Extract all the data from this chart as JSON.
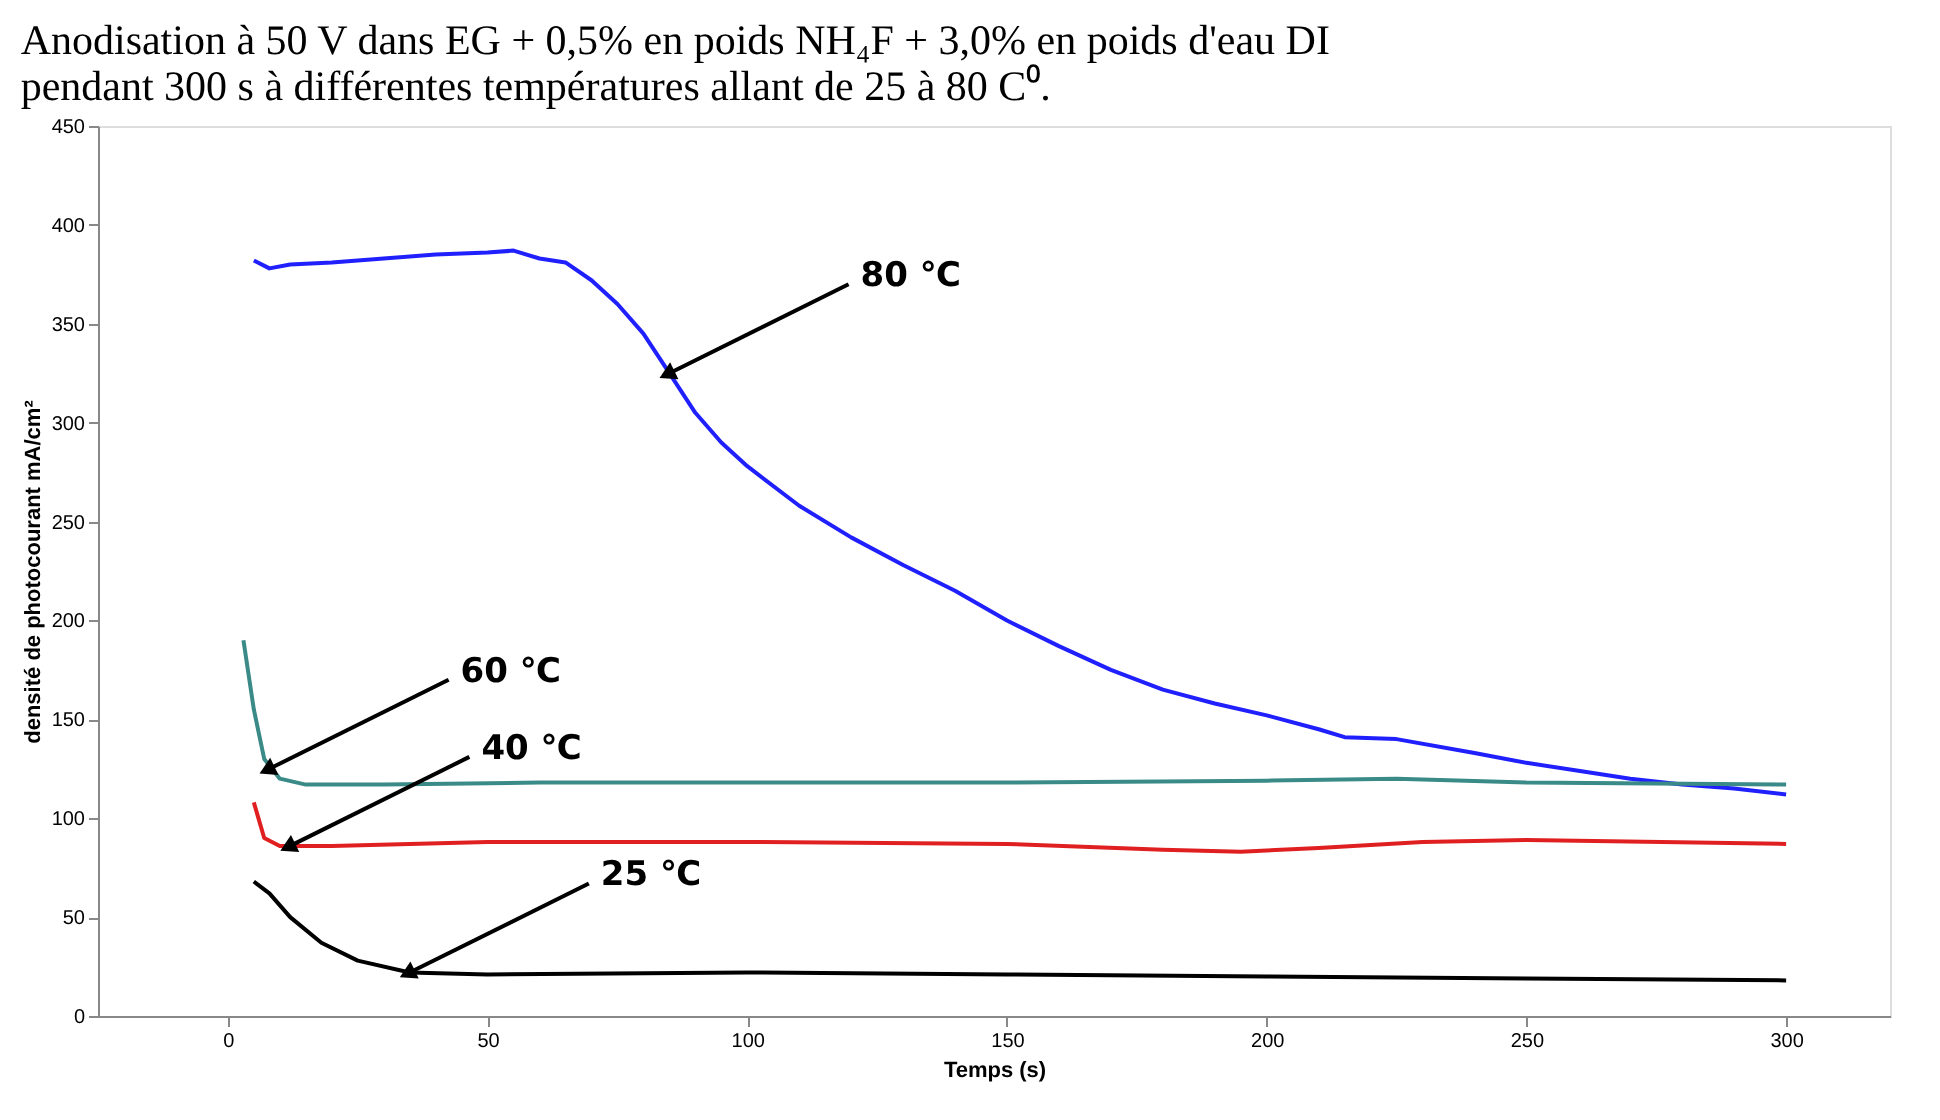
{
  "chart_data": {
    "type": "line",
    "title": "Anodisation à 50 V dans EG + 0,5% en poids NH₄F + 3,0% en poids d'eau DI\npendant 300 s à différentes températures allant de 25 à 80 C⁰.",
    "xlabel": "Temps (s)",
    "ylabel": "densité de photocourant mA/cm²",
    "xlim": [
      -25,
      320
    ],
    "xticks": [
      0,
      50,
      100,
      150,
      200,
      250,
      300
    ],
    "ylim": [
      0,
      450
    ],
    "yticks": [
      0,
      50,
      100,
      150,
      200,
      250,
      300,
      350,
      400,
      450
    ],
    "grid": false,
    "marker": "none",
    "line_style": "solid",
    "series": [
      {
        "color": "#2020ff",
        "x": [
          5,
          8,
          12,
          20,
          30,
          40,
          50,
          55,
          60,
          65,
          70,
          75,
          80,
          85,
          90,
          95,
          100,
          110,
          120,
          130,
          140,
          150,
          160,
          170,
          180,
          190,
          200,
          210,
          215,
          225,
          240,
          250,
          260,
          270,
          280,
          290,
          300
        ],
        "values": [
          382,
          378,
          380,
          381,
          383,
          385,
          386,
          387,
          383,
          381,
          372,
          360,
          345,
          325,
          305,
          290,
          278,
          258,
          242,
          228,
          215,
          200,
          187,
          175,
          165,
          158,
          152,
          145,
          141,
          140,
          133,
          128,
          124,
          120,
          117,
          115,
          112
        ]
      },
      {
        "color": "#3a8a88",
        "x": [
          3,
          5,
          7,
          10,
          15,
          30,
          60,
          100,
          150,
          200,
          225,
          250,
          300
        ],
        "values": [
          190,
          155,
          130,
          120,
          117,
          117,
          118,
          118,
          118,
          119,
          120,
          118,
          117
        ]
      },
      {
        "color": "#e02020",
        "x": [
          5,
          7,
          10,
          20,
          50,
          100,
          150,
          180,
          195,
          210,
          230,
          250,
          300
        ],
        "values": [
          108,
          90,
          86,
          86,
          88,
          88,
          87,
          84,
          83,
          85,
          88,
          89,
          87
        ]
      },
      {
        "color": "#000000",
        "x": [
          5,
          8,
          12,
          18,
          25,
          35,
          50,
          100,
          150,
          200,
          250,
          300
        ],
        "values": [
          68,
          62,
          50,
          37,
          28,
          22,
          21,
          22,
          21,
          20,
          19,
          18
        ]
      }
    ],
    "annotations": [
      {
        "text": "80 ℃",
        "x": 85,
        "y": 325
      },
      {
        "text": "60 ℃",
        "x": 8,
        "y": 125
      },
      {
        "text": "40 ℃",
        "x": 12,
        "y": 86
      },
      {
        "text": "25 ℃",
        "x": 35,
        "y": 22
      }
    ]
  }
}
